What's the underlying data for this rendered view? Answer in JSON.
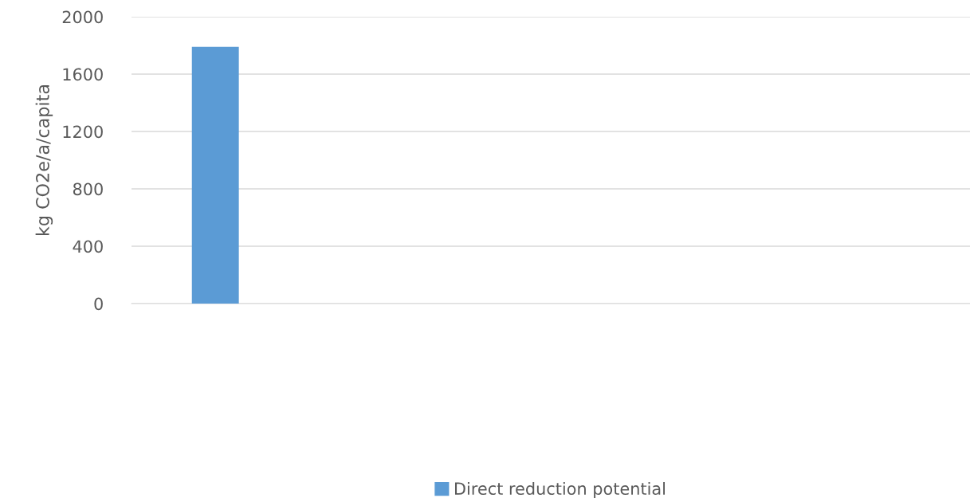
{
  "chart_data": {
    "type": "bar",
    "ylabel": "kg CO2e/a/capita",
    "categories": [
      null,
      null,
      null,
      null,
      null
    ],
    "series": [
      {
        "name": "Direct reduction potential",
        "color": "#5b9bd5",
        "values": [
          1790,
          null,
          null,
          null,
          null
        ]
      }
    ],
    "ylim": [
      0,
      2000
    ],
    "yticks": [
      0,
      400,
      800,
      1200,
      1600,
      2000
    ],
    "grid": "y",
    "legend": "bottom"
  }
}
